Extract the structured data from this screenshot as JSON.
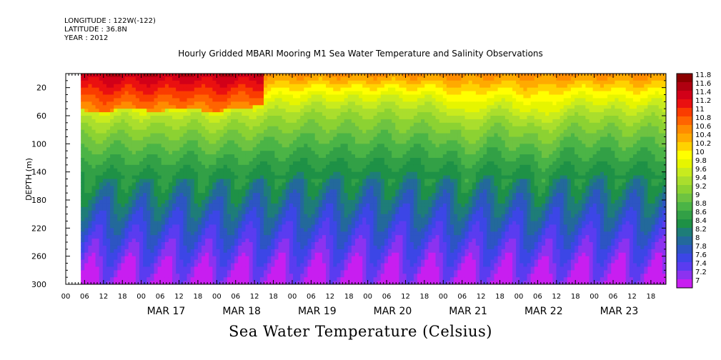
{
  "header": {
    "longitude": "LONGITUDE : 122W(-122)",
    "latitude": "LATITUDE : 36.8N",
    "year": "YEAR : 2012"
  },
  "chart_data": {
    "type": "heatmap",
    "title": "Hourly Gridded MBARI Mooring M1 Sea Water Temperature and Salinity Observations",
    "footer": "Sea Water Temperature (Celsius)",
    "ylabel": "DEPTH (m)",
    "xlabel": "",
    "ylim": [
      300,
      0
    ],
    "y_ticks": [
      20,
      60,
      100,
      140,
      180,
      220,
      260,
      300
    ],
    "x_hour_ticks": [
      "00",
      "06",
      "12",
      "18",
      "00",
      "06",
      "12",
      "18",
      "00",
      "06",
      "12",
      "18",
      "00",
      "06",
      "12",
      "18",
      "00",
      "06",
      "12",
      "18",
      "00",
      "06",
      "12",
      "18",
      "00",
      "06",
      "12",
      "18",
      "00",
      "06",
      "12",
      "18"
    ],
    "x_day_labels": [
      "MAR 17",
      "MAR 18",
      "MAR 19",
      "MAR 20",
      "MAR 21",
      "MAR 22",
      "MAR 23"
    ],
    "x_range_days": [
      16.0,
      23.95
    ],
    "data_start_day": 16.2,
    "colorbar_levels": [
      "11.8",
      "11.6",
      "11.4",
      "11.2",
      "11",
      "10.8",
      "10.6",
      "10.4",
      "10.2",
      "10",
      "9.8",
      "9.6",
      "9.4",
      "9.2",
      "9",
      "8.8",
      "8.6",
      "8.4",
      "8.2",
      "8",
      "7.8",
      "7.6",
      "7.4",
      "7.2",
      "7"
    ],
    "colorbar_colors": [
      "#8b0000",
      "#b00010",
      "#d20018",
      "#ea1010",
      "#fa3c00",
      "#ff6400",
      "#ff8c00",
      "#ffaa00",
      "#ffd200",
      "#ffff00",
      "#e6f500",
      "#c8eb1e",
      "#aade2d",
      "#8cd232",
      "#6ec341",
      "#4bb446",
      "#32a046",
      "#1e9146",
      "#1e7d78",
      "#23699b",
      "#2d55c3",
      "#3c46e6",
      "#5a3cf0",
      "#8c32f0",
      "#c81ef0"
    ],
    "surface_layer_depth_by_day": [
      [
        16.2,
        52
      ],
      [
        16.5,
        55
      ],
      [
        16.8,
        50
      ],
      [
        17.2,
        54
      ],
      [
        17.6,
        48
      ],
      [
        17.9,
        55
      ],
      [
        18.3,
        50
      ],
      [
        18.6,
        46
      ],
      [
        19.0,
        38
      ],
      [
        19.4,
        34
      ],
      [
        19.8,
        36
      ],
      [
        20.2,
        33
      ],
      [
        20.6,
        35
      ],
      [
        21.0,
        38
      ],
      [
        21.3,
        60
      ],
      [
        21.6,
        40
      ],
      [
        22.0,
        45
      ],
      [
        22.3,
        62
      ],
      [
        22.6,
        42
      ],
      [
        23.0,
        38
      ],
      [
        23.4,
        44
      ],
      [
        23.9,
        40
      ]
    ]
  }
}
